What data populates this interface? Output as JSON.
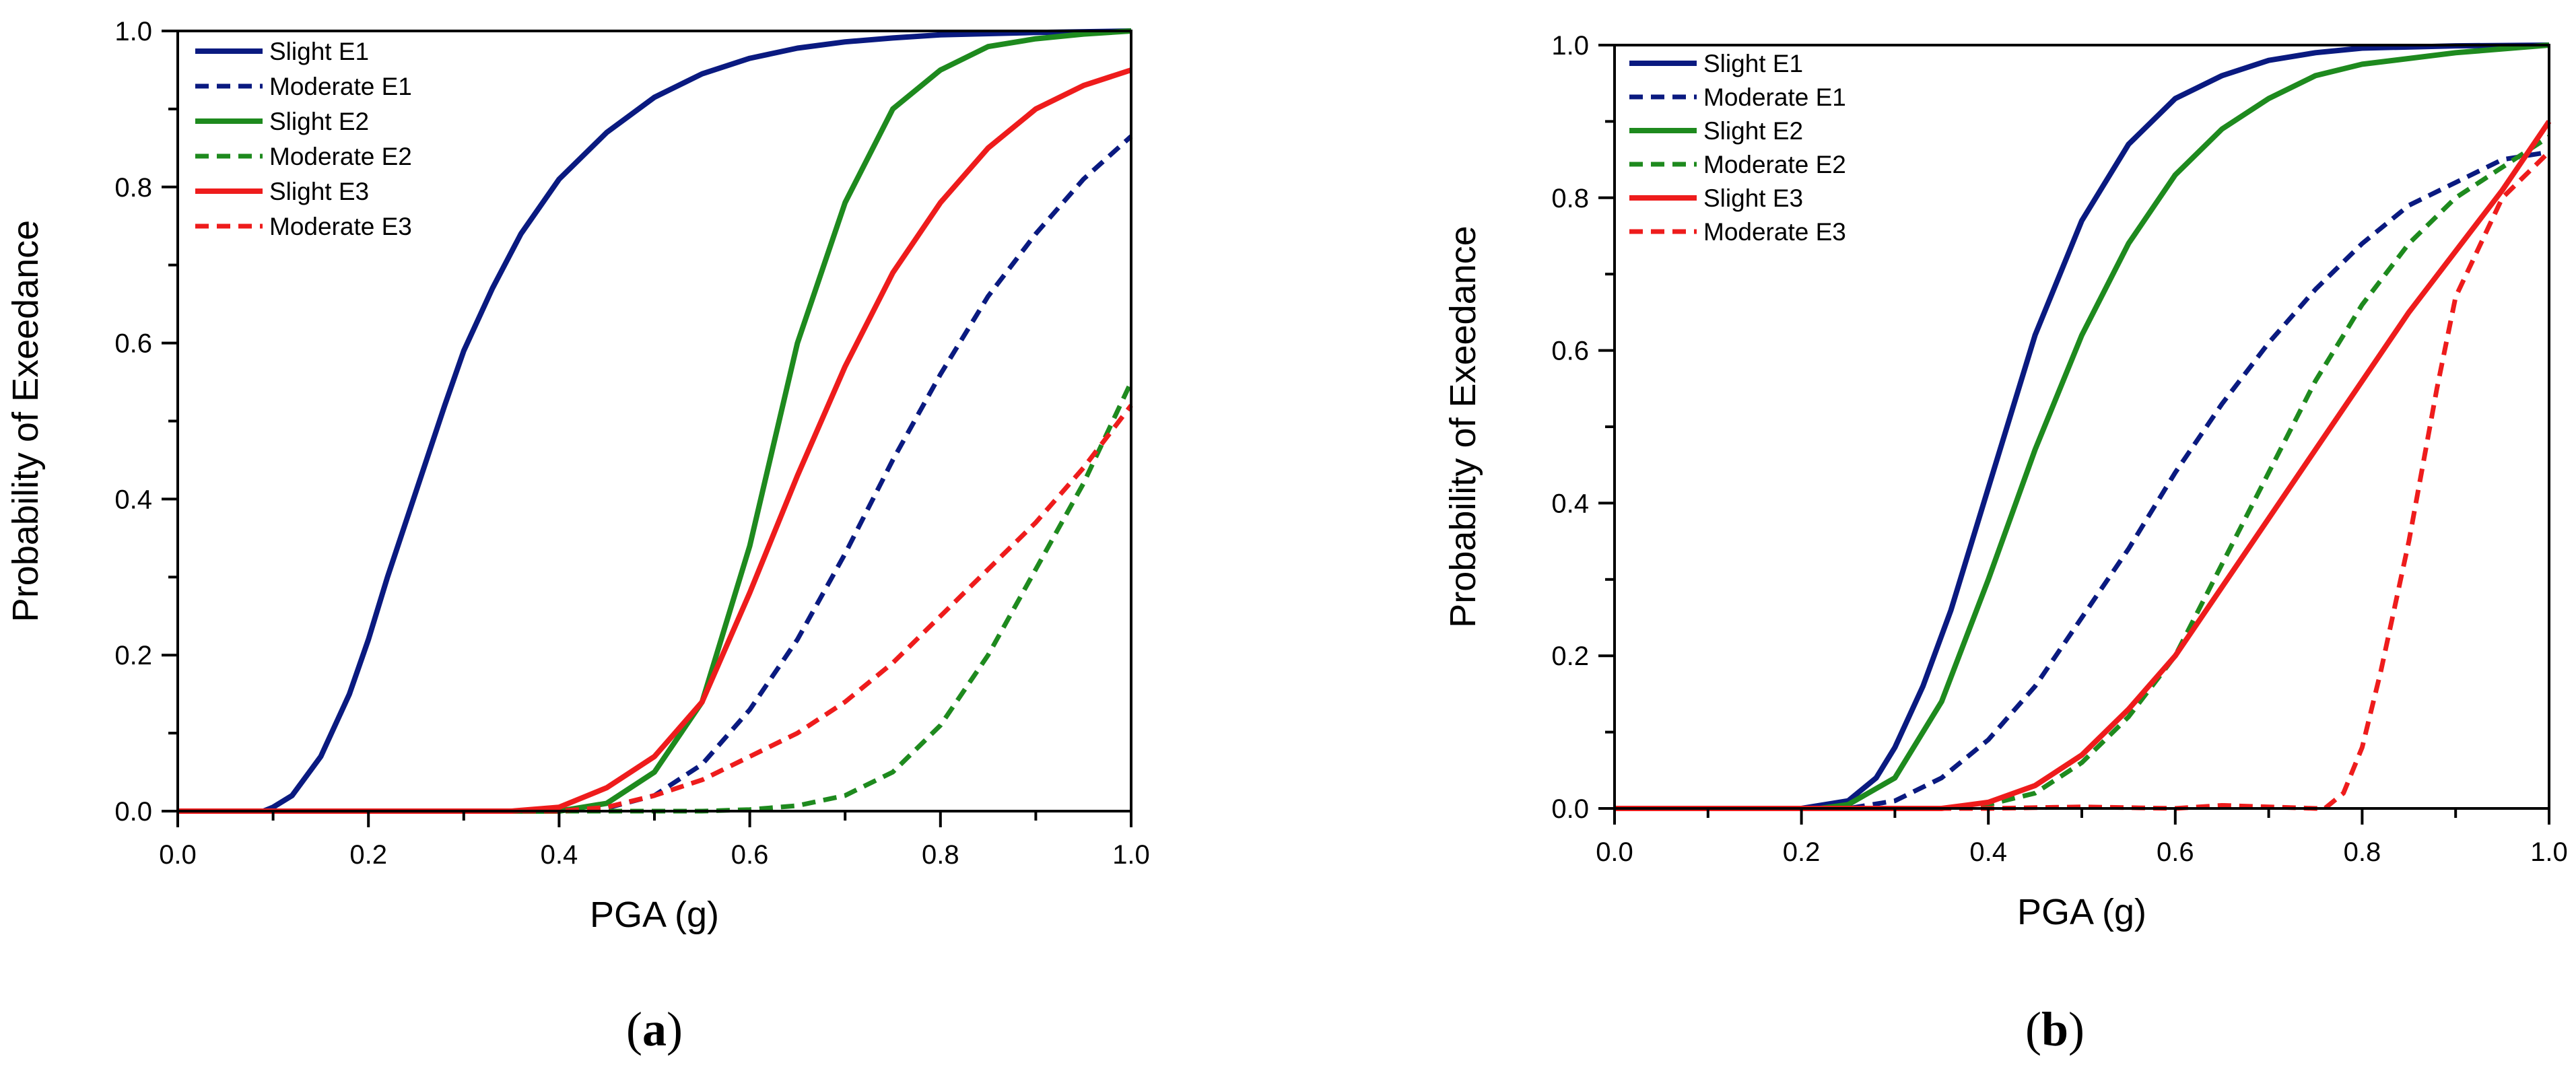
{
  "chart_data": [
    {
      "panel_label": "a",
      "type": "line",
      "xlabel": "PGA (g)",
      "ylabel": "Probability of Exeedance",
      "xlim": [
        0.0,
        1.0
      ],
      "ylim": [
        0.0,
        1.0
      ],
      "x_ticks": [
        "0.0",
        "0.2",
        "0.4",
        "0.6",
        "0.8",
        "1.0"
      ],
      "y_ticks": [
        "0.0",
        "0.2",
        "0.4",
        "0.6",
        "0.8",
        "1.0"
      ],
      "legend_position": "top-left",
      "series": [
        {
          "name": "Slight E1",
          "color": "#0a1a80",
          "dash": "solid",
          "x": [
            0,
            0.09,
            0.1,
            0.12,
            0.15,
            0.18,
            0.2,
            0.22,
            0.25,
            0.28,
            0.3,
            0.33,
            0.36,
            0.4,
            0.45,
            0.5,
            0.55,
            0.6,
            0.65,
            0.7,
            0.75,
            0.8,
            0.9,
            1.0
          ],
          "y": [
            0,
            0,
            0.005,
            0.02,
            0.07,
            0.15,
            0.22,
            0.3,
            0.41,
            0.52,
            0.59,
            0.67,
            0.74,
            0.81,
            0.87,
            0.915,
            0.945,
            0.965,
            0.978,
            0.986,
            0.991,
            0.995,
            0.998,
            1.0
          ]
        },
        {
          "name": "Moderate E1",
          "color": "#0a1a80",
          "dash": "dashed",
          "x": [
            0,
            0.4,
            0.45,
            0.5,
            0.55,
            0.6,
            0.65,
            0.7,
            0.75,
            0.8,
            0.85,
            0.9,
            0.95,
            1.0
          ],
          "y": [
            0,
            0,
            0.004,
            0.02,
            0.06,
            0.13,
            0.22,
            0.33,
            0.45,
            0.56,
            0.66,
            0.74,
            0.81,
            0.865
          ]
        },
        {
          "name": "Slight E2",
          "color": "#1e8a1e",
          "dash": "solid",
          "x": [
            0,
            0.4,
            0.45,
            0.5,
            0.55,
            0.6,
            0.65,
            0.7,
            0.75,
            0.8,
            0.85,
            0.9,
            0.95,
            1.0
          ],
          "y": [
            0,
            0,
            0.01,
            0.05,
            0.14,
            0.34,
            0.6,
            0.78,
            0.9,
            0.95,
            0.98,
            0.99,
            0.996,
            1.0
          ]
        },
        {
          "name": "Moderate E2",
          "color": "#1e8a1e",
          "dash": "dashed",
          "x": [
            0,
            0.55,
            0.6,
            0.65,
            0.7,
            0.75,
            0.8,
            0.85,
            0.9,
            0.95,
            1.0
          ],
          "y": [
            0,
            0,
            0.002,
            0.007,
            0.02,
            0.05,
            0.11,
            0.2,
            0.31,
            0.42,
            0.55
          ]
        },
        {
          "name": "Slight E3",
          "color": "#ee1c1c",
          "dash": "solid",
          "x": [
            0,
            0.35,
            0.4,
            0.45,
            0.5,
            0.55,
            0.6,
            0.65,
            0.7,
            0.75,
            0.8,
            0.85,
            0.9,
            0.95,
            1.0
          ],
          "y": [
            0,
            0,
            0.005,
            0.03,
            0.07,
            0.14,
            0.28,
            0.43,
            0.57,
            0.69,
            0.78,
            0.85,
            0.9,
            0.93,
            0.95
          ]
        },
        {
          "name": "Moderate E3",
          "color": "#ee1c1c",
          "dash": "dashed",
          "x": [
            0,
            0.4,
            0.45,
            0.5,
            0.55,
            0.6,
            0.65,
            0.7,
            0.75,
            0.8,
            0.85,
            0.9,
            0.95,
            1.0
          ],
          "y": [
            0,
            0,
            0.005,
            0.02,
            0.04,
            0.07,
            0.1,
            0.14,
            0.19,
            0.25,
            0.31,
            0.37,
            0.44,
            0.52
          ]
        }
      ]
    },
    {
      "panel_label": "b",
      "type": "line",
      "xlabel": "PGA (g)",
      "ylabel": "Probability of Exeedance",
      "xlim": [
        0.0,
        1.0
      ],
      "ylim": [
        0.0,
        1.0
      ],
      "x_ticks": [
        "0.0",
        "0.2",
        "0.4",
        "0.6",
        "0.8",
        "1.0"
      ],
      "y_ticks": [
        "0.0",
        "0.2",
        "0.4",
        "0.6",
        "0.8",
        "1.0"
      ],
      "legend_position": "top-left",
      "series": [
        {
          "name": "Slight E1",
          "color": "#0a1a80",
          "dash": "solid",
          "x": [
            0,
            0.2,
            0.25,
            0.28,
            0.3,
            0.33,
            0.36,
            0.4,
            0.45,
            0.5,
            0.55,
            0.6,
            0.65,
            0.7,
            0.75,
            0.8,
            0.9,
            1.0
          ],
          "y": [
            0,
            0,
            0.01,
            0.04,
            0.08,
            0.16,
            0.26,
            0.42,
            0.62,
            0.77,
            0.87,
            0.93,
            0.96,
            0.98,
            0.99,
            0.996,
            0.999,
            1.0
          ]
        },
        {
          "name": "Moderate E1",
          "color": "#0a1a80",
          "dash": "dashed",
          "x": [
            0,
            0.25,
            0.3,
            0.35,
            0.4,
            0.45,
            0.5,
            0.55,
            0.6,
            0.65,
            0.7,
            0.75,
            0.8,
            0.85,
            0.9,
            0.95,
            1.0
          ],
          "y": [
            0,
            0,
            0.01,
            0.04,
            0.09,
            0.16,
            0.25,
            0.34,
            0.44,
            0.53,
            0.61,
            0.68,
            0.74,
            0.79,
            0.82,
            0.85,
            0.86
          ]
        },
        {
          "name": "Slight E2",
          "color": "#1e8a1e",
          "dash": "solid",
          "x": [
            0,
            0.22,
            0.25,
            0.3,
            0.35,
            0.4,
            0.45,
            0.5,
            0.55,
            0.6,
            0.65,
            0.7,
            0.75,
            0.8,
            0.9,
            1.0
          ],
          "y": [
            0,
            0,
            0.005,
            0.04,
            0.14,
            0.3,
            0.47,
            0.62,
            0.74,
            0.83,
            0.89,
            0.93,
            0.96,
            0.975,
            0.99,
            1.0
          ]
        },
        {
          "name": "Moderate E2",
          "color": "#1e8a1e",
          "dash": "dashed",
          "x": [
            0,
            0.35,
            0.4,
            0.45,
            0.5,
            0.55,
            0.6,
            0.65,
            0.7,
            0.75,
            0.8,
            0.85,
            0.9,
            0.95,
            1.0
          ],
          "y": [
            0,
            0,
            0.005,
            0.02,
            0.06,
            0.12,
            0.2,
            0.32,
            0.44,
            0.56,
            0.66,
            0.74,
            0.8,
            0.84,
            0.88
          ]
        },
        {
          "name": "Slight E3",
          "color": "#ee1c1c",
          "dash": "solid",
          "x": [
            0,
            0.35,
            0.4,
            0.45,
            0.5,
            0.55,
            0.6,
            0.65,
            0.7,
            0.75,
            0.8,
            0.85,
            0.9,
            0.95,
            1.0
          ],
          "y": [
            0,
            0,
            0.008,
            0.03,
            0.07,
            0.13,
            0.2,
            0.29,
            0.38,
            0.47,
            0.56,
            0.65,
            0.73,
            0.81,
            0.9
          ]
        },
        {
          "name": "Moderate E3",
          "color": "#ee1c1c",
          "dash": "dashed",
          "x": [
            0,
            0.4,
            0.5,
            0.6,
            0.65,
            0.7,
            0.75,
            0.76,
            0.78,
            0.8,
            0.82,
            0.85,
            0.88,
            0.9,
            0.95,
            1.0
          ],
          "y": [
            0,
            0,
            0.002,
            0.0,
            0.004,
            0.002,
            0.0,
            0.0,
            0.02,
            0.08,
            0.18,
            0.35,
            0.55,
            0.67,
            0.8,
            0.86
          ]
        }
      ]
    }
  ]
}
